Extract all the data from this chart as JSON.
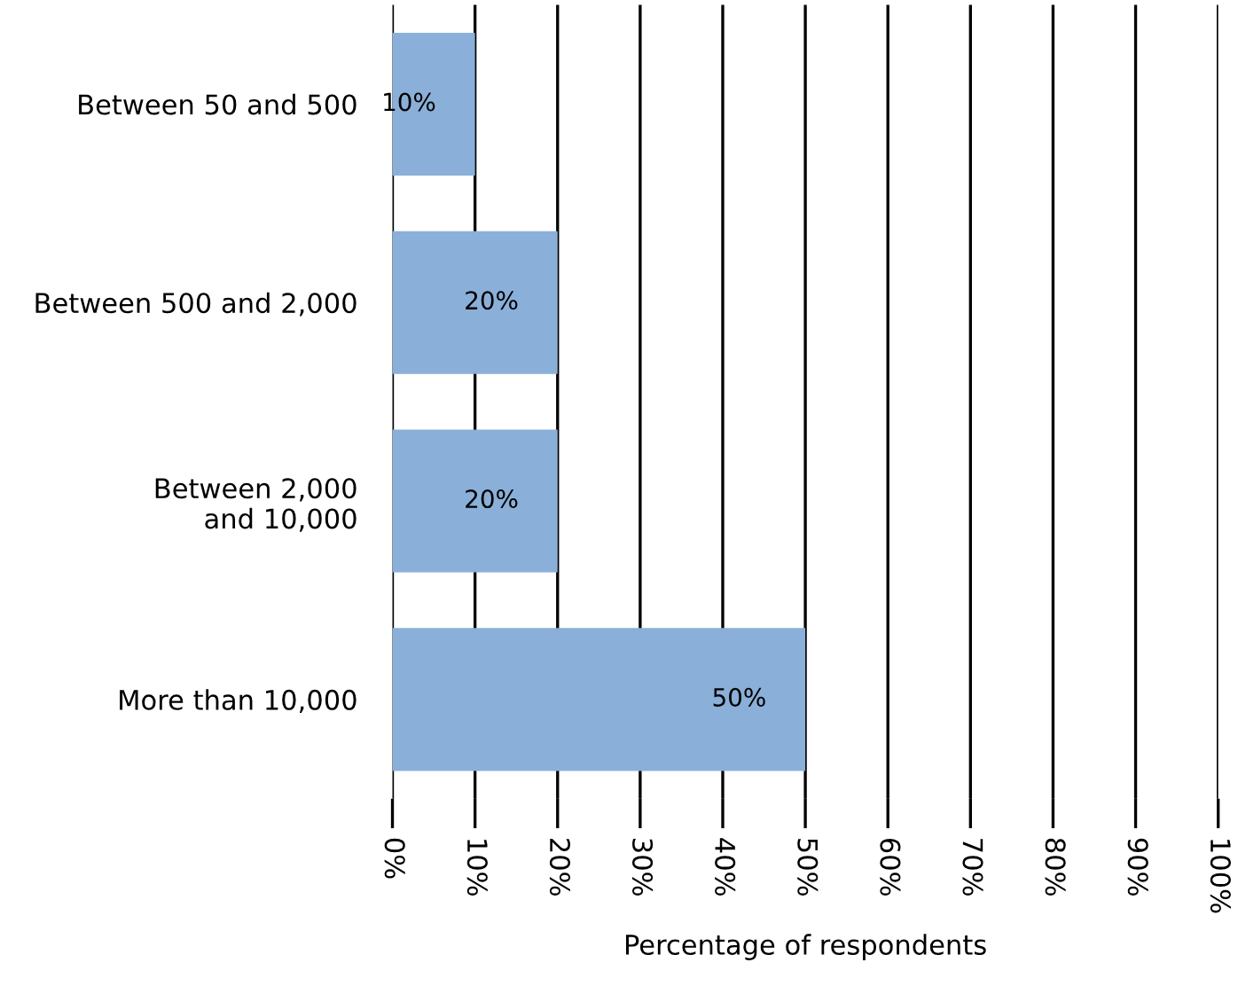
{
  "chart_data": {
    "type": "bar",
    "orientation": "horizontal",
    "xlabel": "Percentage of respondents",
    "categories": [
      "Between 50 and 500",
      "Between 500 and 2,000",
      "Between 2,000\nand 10,000",
      "More than 10,000"
    ],
    "values": [
      10,
      20,
      20,
      50
    ],
    "color": "#8aafd8",
    "value_labels": [
      "10%",
      "20%",
      "20%",
      "50%"
    ],
    "xlim": [
      0,
      100
    ],
    "xticks": [
      {
        "value": 0,
        "label": "0%"
      },
      {
        "value": 10,
        "label": "10%"
      },
      {
        "value": 20,
        "label": "20%"
      },
      {
        "value": 30,
        "label": "30%"
      },
      {
        "value": 40,
        "label": "40%"
      },
      {
        "value": 50,
        "label": "50%"
      },
      {
        "value": 60,
        "label": "60%"
      },
      {
        "value": 70,
        "label": "70%"
      },
      {
        "value": 80,
        "label": "80%"
      },
      {
        "value": 90,
        "label": "90%"
      },
      {
        "value": 100,
        "label": "100%"
      }
    ],
    "grid": "x"
  }
}
